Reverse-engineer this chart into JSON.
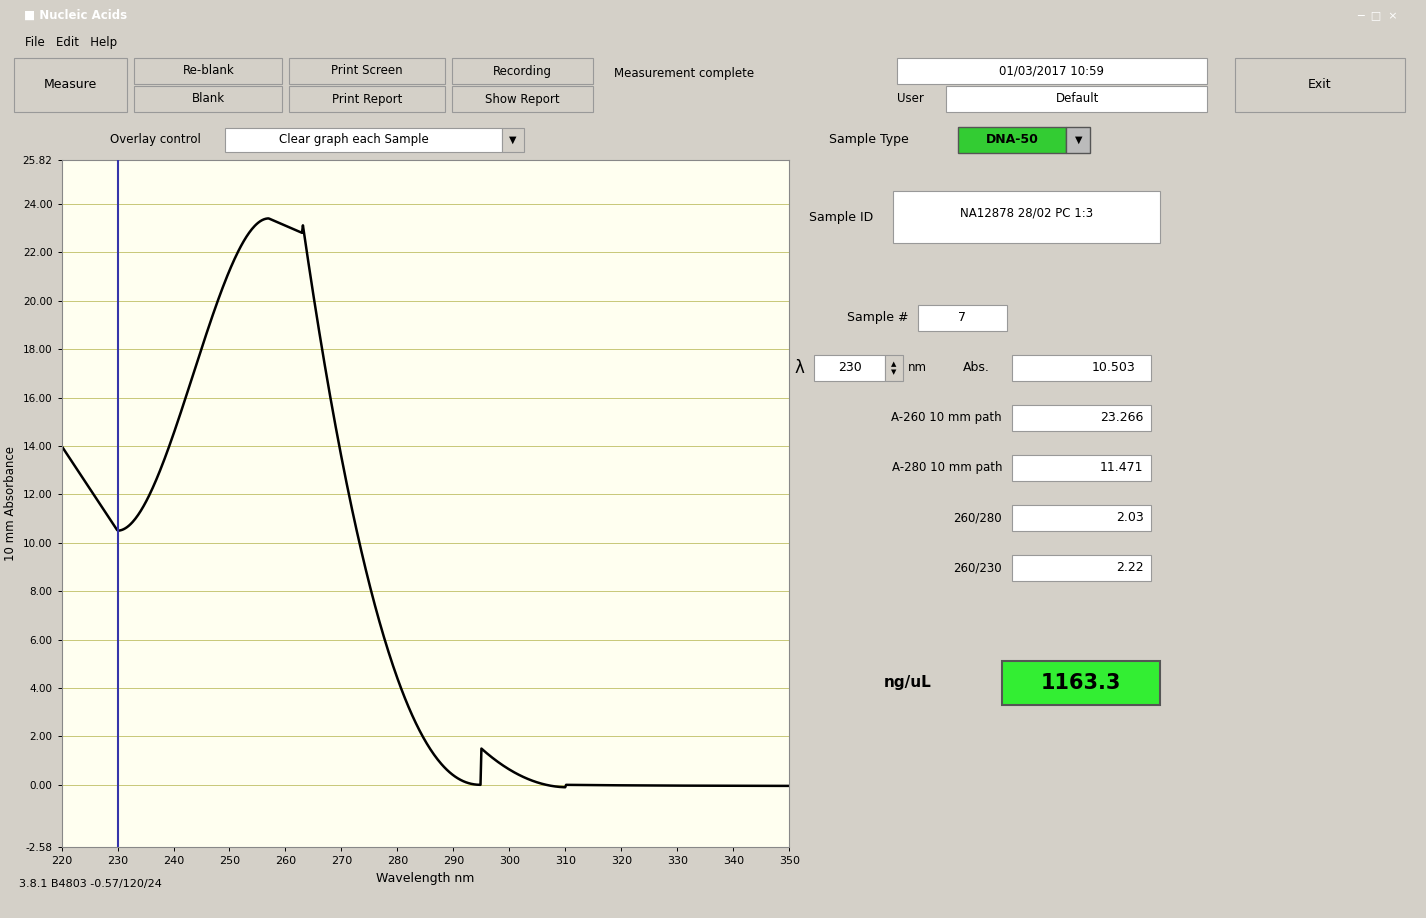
{
  "title": "Nucleic Acids",
  "window_bg": "#d4d0c8",
  "content_bg": "#c8c8c8",
  "plot_bg": "#fffff0",
  "grid_color": "#c8c878",
  "plot_xlim": [
    220,
    350
  ],
  "plot_ylim": [
    -2.58,
    25.82
  ],
  "xticks": [
    220,
    230,
    240,
    250,
    260,
    270,
    280,
    290,
    300,
    310,
    320,
    330,
    340,
    350
  ],
  "yticks": [
    -2.58,
    0.0,
    2.0,
    4.0,
    6.0,
    8.0,
    10.0,
    12.0,
    14.0,
    16.0,
    18.0,
    20.0,
    22.0,
    24.0,
    25.82
  ],
  "ytick_labels": [
    "-2.58",
    "0.00",
    "2.00",
    "4.00",
    "6.00",
    "8.00",
    "10.00",
    "12.00",
    "14.00",
    "16.00",
    "18.00",
    "20.00",
    "22.00",
    "24.00",
    "25.82"
  ],
  "xlabel": "Wavelength nm",
  "ylabel": "10 mm Absorbance",
  "vline_x": 230,
  "vline_color": "#3535aa",
  "curve_color": "#000000",
  "sample_type": "DNA-50",
  "sample_type_bg": "#33cc33",
  "sample_id": "NA12878 28/02 PC 1:3",
  "sample_num": "7",
  "lambda_val": "230",
  "abs_val": "10.503",
  "a260": "23.266",
  "a280": "11.471",
  "ratio_260_280": "2.03",
  "ratio_260_230": "2.22",
  "ng_ul": "1163.3",
  "ng_ul_bg": "#33ee33",
  "date_time": "01/03/2017 10:59",
  "user": "Default",
  "overlay_control": "Clear graph each Sample",
  "footer": "3.8.1 B4803 -0.57/120/24",
  "measurement_status": "Measurement complete",
  "titlebar_bg": "#6b6b9b",
  "titlebar_text": "white",
  "btn_bg": "#d4d0c8",
  "white": "#ffffff"
}
